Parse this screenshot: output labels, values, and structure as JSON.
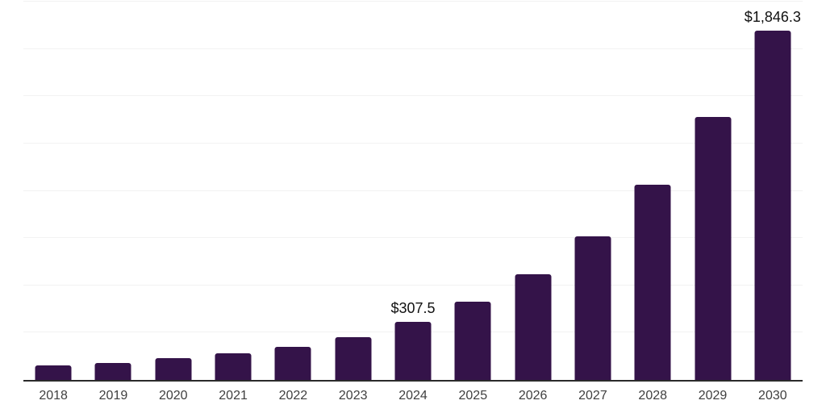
{
  "chart_data": {
    "type": "bar",
    "title": "",
    "categories": [
      "2018",
      "2019",
      "2020",
      "2021",
      "2022",
      "2023",
      "2024",
      "2025",
      "2026",
      "2027",
      "2028",
      "2029",
      "2030"
    ],
    "values": [
      75,
      88,
      117,
      139,
      177,
      228,
      307.5,
      415,
      560,
      760,
      1030,
      1390,
      1846.3
    ],
    "data_labels": [
      {
        "category": "2024",
        "text": "$307.5"
      },
      {
        "category": "2030",
        "text": "$1,846.3"
      }
    ],
    "xlabel": "",
    "ylabel": "",
    "ylim": [
      0,
      2000
    ],
    "gridline_step": 250,
    "grid": "horizontal-only",
    "legend_position": "none",
    "colors": {
      "bar": "#341349",
      "axis_line": "#2b2b2b",
      "gridline": "#f2f2f2",
      "value_label": "#111111",
      "tick_label": "#3f3f3f",
      "background": "#ffffff"
    }
  }
}
